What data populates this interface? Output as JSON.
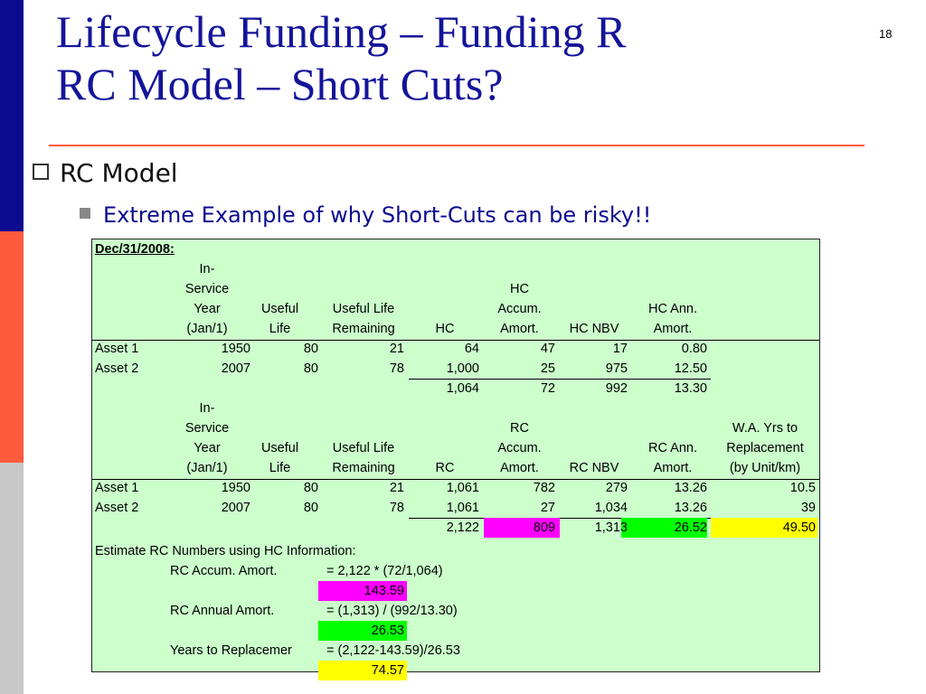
{
  "slide": {
    "title_line1": "Lifecycle Funding – Funding R",
    "title_line2": "RC Model – Short Cuts?",
    "number": "18",
    "bullet1": "RC Model",
    "bullet2": "Extreme Example of why Short-Cuts can be risky!!"
  },
  "sheet": {
    "date_label": "Dec/31/2008:",
    "hc_header": [
      "In-\nService\nYear\n(Jan/1)",
      "Useful\nLife",
      "Useful Life\nRemaining",
      "HC",
      "HC\nAccum.\nAmort.",
      "HC NBV",
      "HC Ann.\nAmort."
    ],
    "hc_header_lines": {
      "c1": [
        "In-",
        "Service",
        "Year",
        "(Jan/1)"
      ],
      "c2": [
        "Useful",
        "Life"
      ],
      "c3": [
        "Useful Life",
        "Remaining"
      ],
      "c4": [
        "HC"
      ],
      "c5": [
        "HC",
        "Accum.",
        "Amort."
      ],
      "c6": [
        "HC NBV"
      ],
      "c7": [
        "HC Ann.",
        "Amort."
      ]
    },
    "hc_rows": [
      {
        "name": "Asset 1",
        "year": "1950",
        "life": "80",
        "remaining": "21",
        "cost": "64",
        "accum": "47",
        "nbv": "17",
        "annual": "0.80"
      },
      {
        "name": "Asset 2",
        "year": "2007",
        "life": "80",
        "remaining": "78",
        "cost": "1,000",
        "accum": "25",
        "nbv": "975",
        "annual": "12.50"
      }
    ],
    "hc_total": {
      "cost": "1,064",
      "accum": "72",
      "nbv": "992",
      "annual": "13.30"
    },
    "rc_header_lines": {
      "c1": [
        "In-",
        "Service",
        "Year",
        "(Jan/1)"
      ],
      "c2": [
        "Useful",
        "Life"
      ],
      "c3": [
        "Useful Life",
        "Remaining"
      ],
      "c4": [
        "RC"
      ],
      "c5": [
        "RC",
        "Accum.",
        "Amort."
      ],
      "c6": [
        "RC NBV"
      ],
      "c7": [
        "RC Ann.",
        "Amort."
      ],
      "c8": [
        "W.A. Yrs to",
        "Replacement",
        "(by Unit/km)"
      ]
    },
    "rc_rows": [
      {
        "name": "Asset 1",
        "year": "1950",
        "life": "80",
        "remaining": "21",
        "cost": "1,061",
        "accum": "782",
        "nbv": "279",
        "annual": "13.26",
        "years": "10.5"
      },
      {
        "name": "Asset 2",
        "year": "2007",
        "life": "80",
        "remaining": "78",
        "cost": "1,061",
        "accum": "27",
        "nbv": "1,034",
        "annual": "13.26",
        "years": "39"
      }
    ],
    "rc_total": {
      "cost": "2,122",
      "accum": "809",
      "nbv": "1,313",
      "annual": "26.52",
      "years": "49.50"
    },
    "estimate_title": "Estimate RC Numbers using HC Information:",
    "estimates": [
      {
        "label": "RC Accum. Amort.",
        "formula": "= 2,122 * (72/1,064)",
        "result": "143.59",
        "color": "#ff00ff"
      },
      {
        "label": "RC Annual Amort.",
        "formula": "= (1,313) / (992/13.30)",
        "result": "26.53",
        "color": "#00ff00"
      },
      {
        "label": "Years to Replacemer",
        "formula": "= (2,122-143.59)/26.53",
        "result": "74.57",
        "color": "#ffff00"
      }
    ],
    "highlight_colors": {
      "magenta": "#ff00ff",
      "green": "#00ff00",
      "yellow": "#ffff00",
      "sheet_bg": "#ccffcc"
    }
  },
  "colors": {
    "title": "#14149a",
    "bar_blue": "#0b0b8f",
    "bar_red": "#ff5a3c",
    "bar_gray": "#c8c8c8"
  }
}
